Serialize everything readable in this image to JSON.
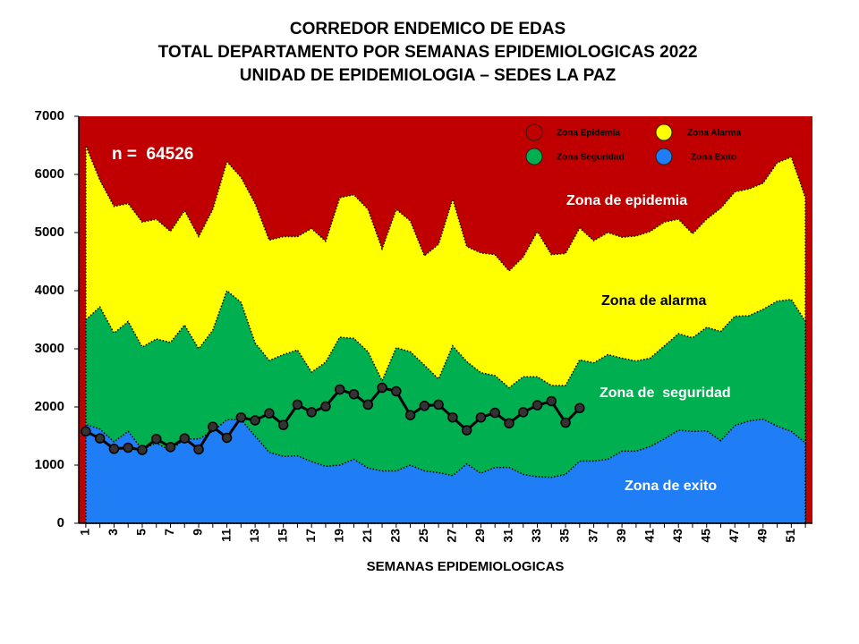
{
  "chart_data": {
    "type": "corridor",
    "title": [
      "CORREDOR  ENDEMICO  DE  EDAS",
      "TOTAL  DEPARTAMENTO  POR  SEMANAS  EPIDEMIOLOGICAS  2022",
      "UNIDAD  DE  EPIDEMIOLOGIA  –  SEDES  LA  PAZ"
    ],
    "x_label": "SEMANAS EPIDEMIOLOGICAS",
    "categories": [
      1,
      null,
      3,
      null,
      5,
      null,
      7,
      null,
      9,
      null,
      11,
      null,
      13,
      null,
      15,
      null,
      17,
      null,
      19,
      null,
      21,
      null,
      23,
      null,
      25,
      null,
      27,
      null,
      29,
      null,
      31,
      null,
      33,
      null,
      35,
      null,
      37,
      null,
      39,
      null,
      41,
      null,
      43,
      null,
      45,
      null,
      47,
      null,
      49,
      null,
      51,
      null
    ],
    "xlim": [
      0.5,
      52.5
    ],
    "ylim": [
      0,
      7000
    ],
    "yticks": [
      0,
      1000,
      2000,
      3000,
      4000,
      5000,
      6000,
      7000
    ],
    "epidemic_zone": {
      "name": "Zona Epidemia",
      "color": "#c00000"
    },
    "series": [
      {
        "name": "Zona Alarma",
        "color": "#ffff00",
        "values": [
          6500,
          5900,
          5450,
          5500,
          5180,
          5230,
          5020,
          5380,
          4930,
          5400,
          6220,
          5950,
          5500,
          4870,
          4930,
          4930,
          5070,
          4850,
          5600,
          5650,
          5400,
          4720,
          5400,
          5200,
          4600,
          4800,
          5580,
          4760,
          4650,
          4620,
          4340,
          4580,
          5020,
          4620,
          4640,
          5080,
          4860,
          5000,
          4920,
          4940,
          5020,
          5180,
          5230,
          4980,
          5230,
          5420,
          5700,
          5750,
          5850,
          6200,
          6300,
          5600
        ]
      },
      {
        "name": "Zona Seguridad",
        "color": "#00b050",
        "values": [
          3500,
          3720,
          3270,
          3470,
          3030,
          3170,
          3110,
          3410,
          3000,
          3320,
          4000,
          3800,
          3100,
          2800,
          2900,
          2980,
          2600,
          2770,
          3200,
          3180,
          2950,
          2450,
          3020,
          2950,
          2720,
          2480,
          3050,
          2780,
          2590,
          2540,
          2330,
          2520,
          2520,
          2370,
          2370,
          2810,
          2760,
          2900,
          2840,
          2790,
          2840,
          3050,
          3260,
          3190,
          3370,
          3300,
          3560,
          3570,
          3680,
          3820,
          3850,
          3470
        ]
      },
      {
        "name": "Zona Exito",
        "color": "#1f7ef5",
        "values": [
          1700,
          1620,
          1400,
          1580,
          1270,
          1380,
          1250,
          1450,
          1450,
          1580,
          1780,
          1780,
          1500,
          1220,
          1150,
          1160,
          1060,
          980,
          1000,
          1100,
          950,
          900,
          900,
          1000,
          900,
          870,
          820,
          1020,
          860,
          960,
          960,
          840,
          800,
          790,
          840,
          1070,
          1070,
          1100,
          1240,
          1240,
          1320,
          1450,
          1600,
          1580,
          1590,
          1420,
          1680,
          1760,
          1790,
          1670,
          1580,
          1380
        ]
      }
    ],
    "observed": {
      "color": "#000000",
      "values": [
        1580,
        1460,
        1280,
        1300,
        1260,
        1450,
        1310,
        1460,
        1270,
        1660,
        1470,
        1820,
        1770,
        1890,
        1690,
        2040,
        1910,
        2010,
        2300,
        2220,
        2040,
        2330,
        2270,
        1860,
        2020,
        2040,
        1820,
        1600,
        1820,
        1900,
        1720,
        1910,
        2030,
        2100,
        1730,
        1980,
        null,
        null,
        null,
        null,
        null,
        null,
        null,
        null,
        null,
        null,
        null,
        null,
        null,
        null,
        null,
        null
      ]
    },
    "annotations": [
      "n =  64526",
      "Zona de epidemia",
      "Zona de alarma",
      "Zona de  seguridad",
      "Zona de exito"
    ]
  }
}
